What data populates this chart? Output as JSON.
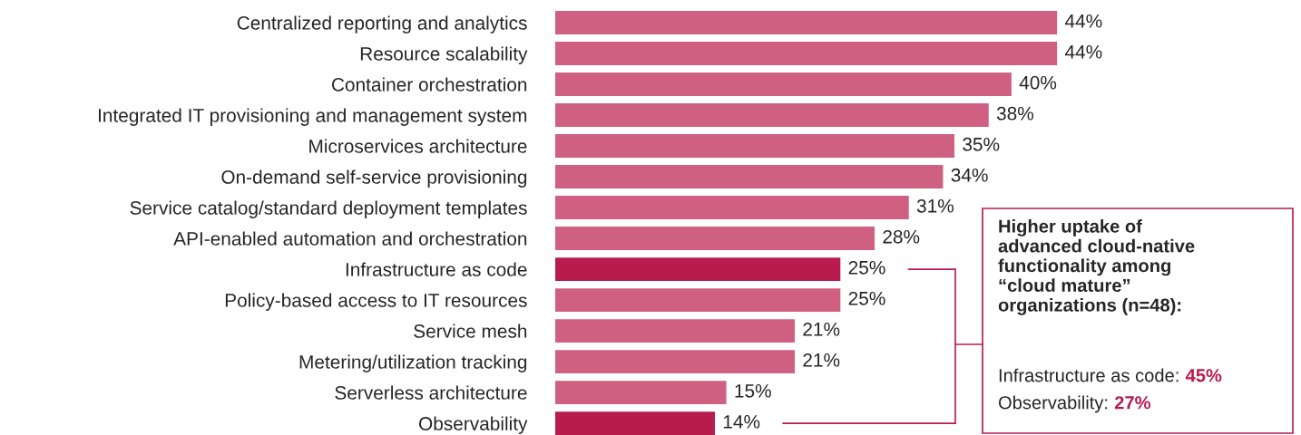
{
  "chart_data": {
    "type": "bar",
    "orientation": "horizontal",
    "value_labels": [
      "44%",
      "44%",
      "40%",
      "38%",
      "35%",
      "34%",
      "31%",
      "28%",
      "25%",
      "25%",
      "21%",
      "21%",
      "15%",
      "14%"
    ],
    "categories": [
      "Centralized reporting and analytics",
      "Resource scalability",
      "Container orchestration",
      "Integrated IT provisioning and management system",
      "Microservices architecture",
      "On-demand self-service provisioning",
      "Service catalog/standard deployment templates",
      "API-enabled automation and orchestration",
      "Infrastructure as code",
      "Policy-based access to IT resources",
      "Service mesh",
      "Metering/utilization tracking",
      "Serverless architecture",
      "Observability"
    ],
    "values": [
      44,
      44,
      40,
      38,
      35,
      34,
      31,
      28,
      25,
      25,
      21,
      21,
      15,
      14
    ],
    "colors": [
      "#d06082",
      "#d06082",
      "#d06082",
      "#d06082",
      "#d06082",
      "#d06082",
      "#d06082",
      "#d06082",
      "#b81c4e",
      "#d06082",
      "#d06082",
      "#d06082",
      "#d06082",
      "#b81c4e"
    ],
    "annotations": [
      "Higher uptake of\nadvanced cloud-native\nfunctionality among\n“cloud mature”\norganizations (n=48):",
      "Infrastructure as code: 45%",
      "Observability: 27%"
    ]
  }
}
